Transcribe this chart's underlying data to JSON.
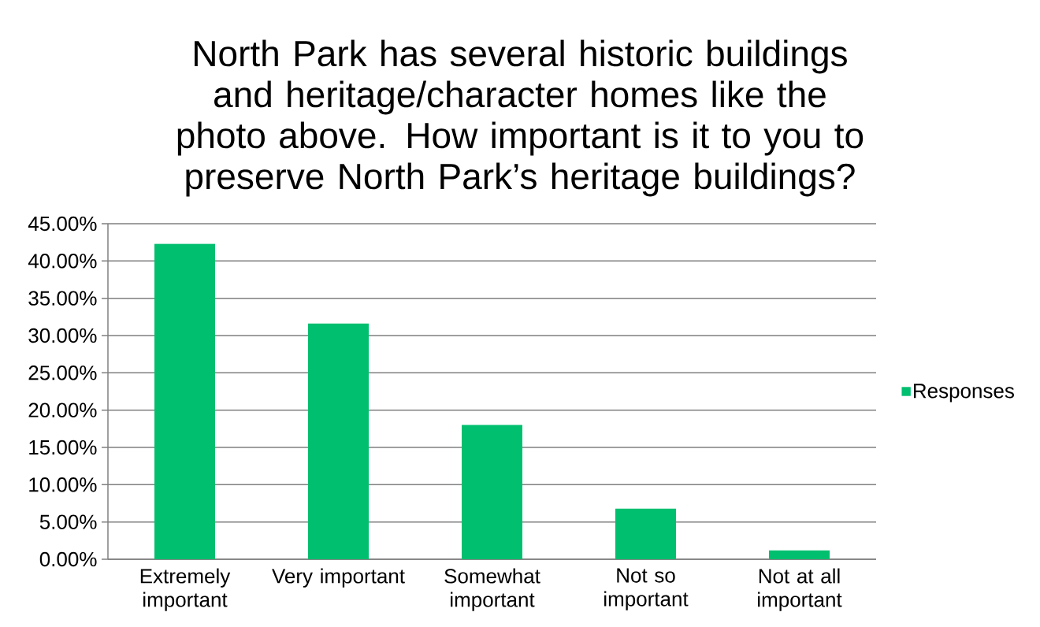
{
  "chart_data": {
    "type": "bar",
    "title": "North Park has several historic buildings and heritage/character homes like the photo above. How important is it to you to preserve North Park’s heritage buildings?",
    "categories": [
      "Extremely important",
      "Very important",
      "Somewhat important",
      "Not so important",
      "Not at all important"
    ],
    "series": [
      {
        "name": "Responses",
        "color": "#00bf6f",
        "values": [
          42.3,
          31.6,
          18.0,
          6.8,
          1.2
        ]
      }
    ],
    "ylim": [
      0,
      45
    ],
    "yticks": [
      {
        "value": 0,
        "label": "0.00%"
      },
      {
        "value": 5,
        "label": "5.00%"
      },
      {
        "value": 10,
        "label": "10.00%"
      },
      {
        "value": 15,
        "label": "15.00%"
      },
      {
        "value": 20,
        "label": "20.00%"
      },
      {
        "value": 25,
        "label": "25.00%"
      },
      {
        "value": 30,
        "label": "30.00%"
      },
      {
        "value": 35,
        "label": "35.00%"
      },
      {
        "value": 40,
        "label": "40.00%"
      },
      {
        "value": 45,
        "label": "45.00%"
      }
    ],
    "grid": "y",
    "legend": "right"
  }
}
